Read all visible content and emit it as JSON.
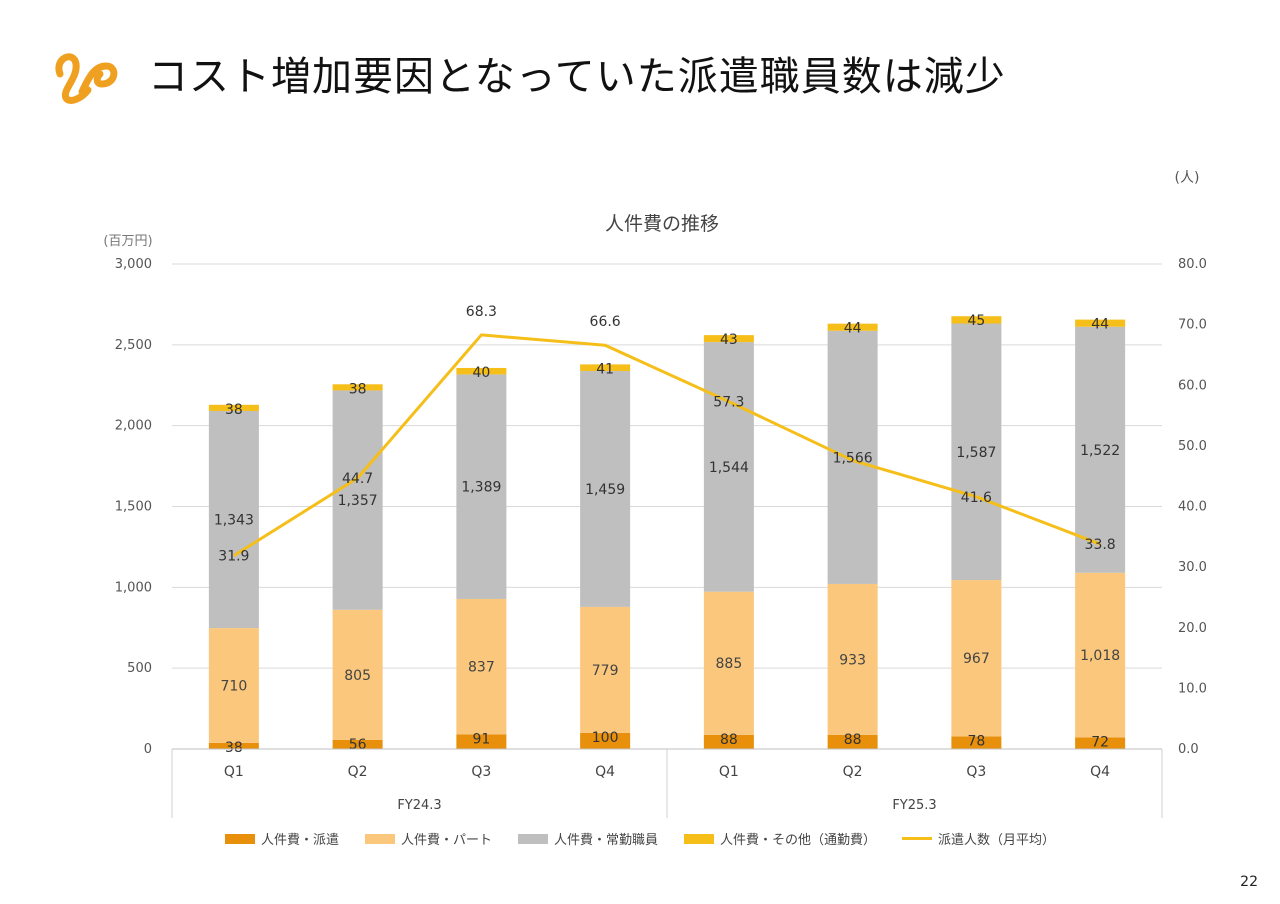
{
  "page": {
    "title": "コスト増加要因となっていた派遣職員数は減少",
    "page_number": "22"
  },
  "chart_data": {
    "type": "bar",
    "stacked": true,
    "title": "人件費の推移",
    "left_axis_unit": "(百万円)",
    "right_axis_unit": "(人)",
    "ylim": [
      0,
      3000
    ],
    "yticks": [
      "3,000",
      "2,500",
      "2,000",
      "1,500",
      "1,000",
      "500",
      "0"
    ],
    "y2lim": [
      0,
      80
    ],
    "y2ticks": [
      "80.0",
      "70.0",
      "60.0",
      "50.0",
      "40.0",
      "30.0",
      "20.0",
      "10.0",
      "0.0"
    ],
    "categories": [
      "Q1",
      "Q2",
      "Q3",
      "Q4",
      "Q1",
      "Q2",
      "Q3",
      "Q4"
    ],
    "groups": [
      {
        "label": "FY24.3",
        "span": 4
      },
      {
        "label": "FY25.3",
        "span": 4
      }
    ],
    "grid": true,
    "legend_position": "bottom",
    "series": [
      {
        "name": "人件費・派遣",
        "color": "#E8900C",
        "values": [
          38,
          56,
          91,
          100,
          88,
          88,
          78,
          72
        ],
        "labels": [
          "38",
          "56",
          "91",
          "100",
          "88",
          "88",
          "78",
          "72"
        ]
      },
      {
        "name": "人件費・パート",
        "color": "#FAC77C",
        "values": [
          710,
          805,
          837,
          779,
          885,
          933,
          967,
          1018
        ],
        "labels": [
          "710",
          "805",
          "837",
          "779",
          "885",
          "933",
          "967",
          "1,018"
        ]
      },
      {
        "name": "人件費・常勤職員",
        "color": "#BFBFBF",
        "values": [
          1343,
          1357,
          1389,
          1459,
          1544,
          1566,
          1587,
          1522
        ],
        "labels": [
          "1,343",
          "1,357",
          "1,389",
          "1,459",
          "1,544",
          "1,566",
          "1,587",
          "1,522"
        ]
      },
      {
        "name": "人件費・その他（通勤費）",
        "color": "#F5BE19",
        "values": [
          38,
          38,
          40,
          41,
          43,
          44,
          45,
          44
        ],
        "labels": [
          "38",
          "38",
          "40",
          "41",
          "43",
          "44",
          "45",
          "44"
        ]
      }
    ],
    "line_series": {
      "name": "派遣人数（月平均）",
      "color": "#F5BE19",
      "axis": "right",
      "values": [
        31.9,
        44.7,
        68.3,
        66.6,
        57.3,
        47.6,
        41.6,
        33.8
      ],
      "labels": [
        "31.9",
        "44.7",
        "68.3",
        "66.6",
        "57.3",
        "",
        "41.6",
        "33.8"
      ]
    }
  }
}
